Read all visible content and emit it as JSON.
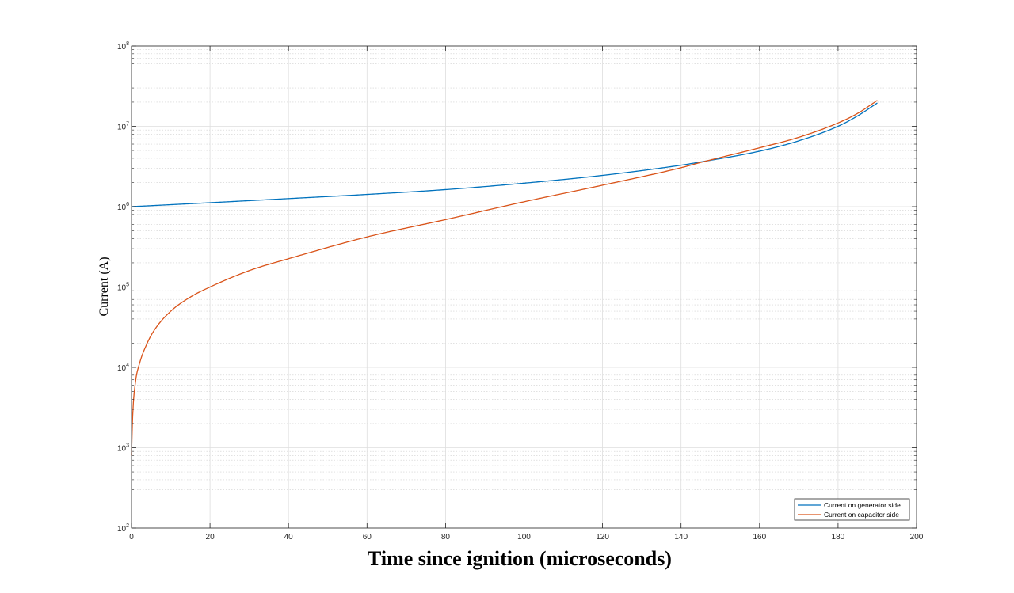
{
  "chart_data": {
    "type": "line",
    "title": "",
    "xlabel": "Time since ignition (microseconds)",
    "ylabel": "Current (A)",
    "xlim": [
      0,
      200
    ],
    "ylim": [
      100,
      100000000
    ],
    "yscale": "log",
    "grid": true,
    "minor_grid": true,
    "legend_position": "bottom-right",
    "x_ticks": [
      0,
      20,
      40,
      60,
      80,
      100,
      120,
      140,
      160,
      180,
      200
    ],
    "y_ticks": [
      {
        "base": "10",
        "exp": "2",
        "value": 100
      },
      {
        "base": "10",
        "exp": "3",
        "value": 1000
      },
      {
        "base": "10",
        "exp": "4",
        "value": 10000
      },
      {
        "base": "10",
        "exp": "5",
        "value": 100000
      },
      {
        "base": "10",
        "exp": "6",
        "value": 1000000
      },
      {
        "base": "10",
        "exp": "7",
        "value": 10000000
      },
      {
        "base": "10",
        "exp": "8",
        "value": 100000000
      }
    ],
    "series": [
      {
        "name": "Current on generator side",
        "color": "#0072BD",
        "x": [
          0,
          20,
          40,
          60,
          80,
          100,
          120,
          140,
          145,
          160,
          170,
          180,
          185,
          190
        ],
        "y": [
          1000000,
          1120000,
          1260000,
          1420000,
          1630000,
          1960000,
          2450000,
          3280000,
          3600000,
          4900000,
          6600000,
          10000000,
          13500000,
          19500000
        ]
      },
      {
        "name": "Current on capacitor side",
        "color": "#D95319",
        "x": [
          0,
          0.3,
          1,
          2,
          4,
          6,
          10,
          15,
          20,
          30,
          40,
          60,
          80,
          100,
          120,
          140,
          145,
          160,
          170,
          180,
          185,
          190
        ],
        "y": [
          800,
          2500,
          6500,
          11000,
          20000,
          30000,
          50000,
          75000,
          100000,
          160000,
          225000,
          420000,
          690000,
          1150000,
          1850000,
          3050000,
          3550000,
          5400000,
          7300000,
          11000000,
          14500000,
          21000000
        ]
      }
    ]
  }
}
